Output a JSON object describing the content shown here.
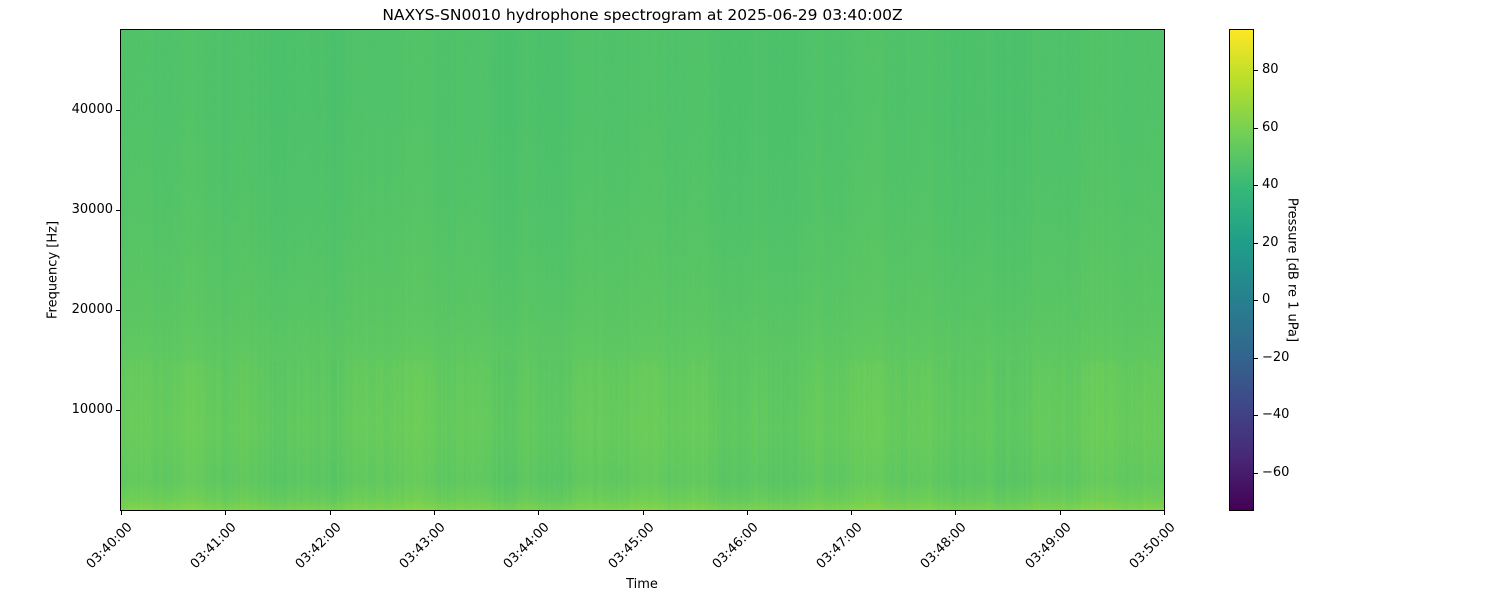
{
  "chart_data": {
    "type": "heatmap",
    "title": "NAXYS-SN0010 hydrophone spectrogram at 2025-06-29 03:40:00Z",
    "xlabel": "Time",
    "ylabel": "Frequency [Hz]",
    "x_ticks": [
      "03:40:00",
      "03:41:00",
      "03:42:00",
      "03:43:00",
      "03:44:00",
      "03:45:00",
      "03:46:00",
      "03:47:00",
      "03:48:00",
      "03:49:00",
      "03:50:00"
    ],
    "y_ticks": [
      10000,
      20000,
      30000,
      40000
    ],
    "ylim": [
      0,
      48000
    ],
    "colorbar": {
      "label": "Pressure [dB re 1 uPa]",
      "ticks": [
        -60,
        -40,
        -20,
        0,
        20,
        40,
        60,
        80
      ],
      "range": [
        -73,
        94
      ],
      "colormap": "viridis"
    },
    "level_profile_db": {
      "frequencies_hz": [
        0,
        1000,
        3000,
        8000,
        13000,
        20000,
        30000,
        40000,
        48000
      ],
      "levels_db": [
        62,
        56,
        52,
        54,
        53,
        50,
        48,
        47,
        47
      ]
    }
  }
}
